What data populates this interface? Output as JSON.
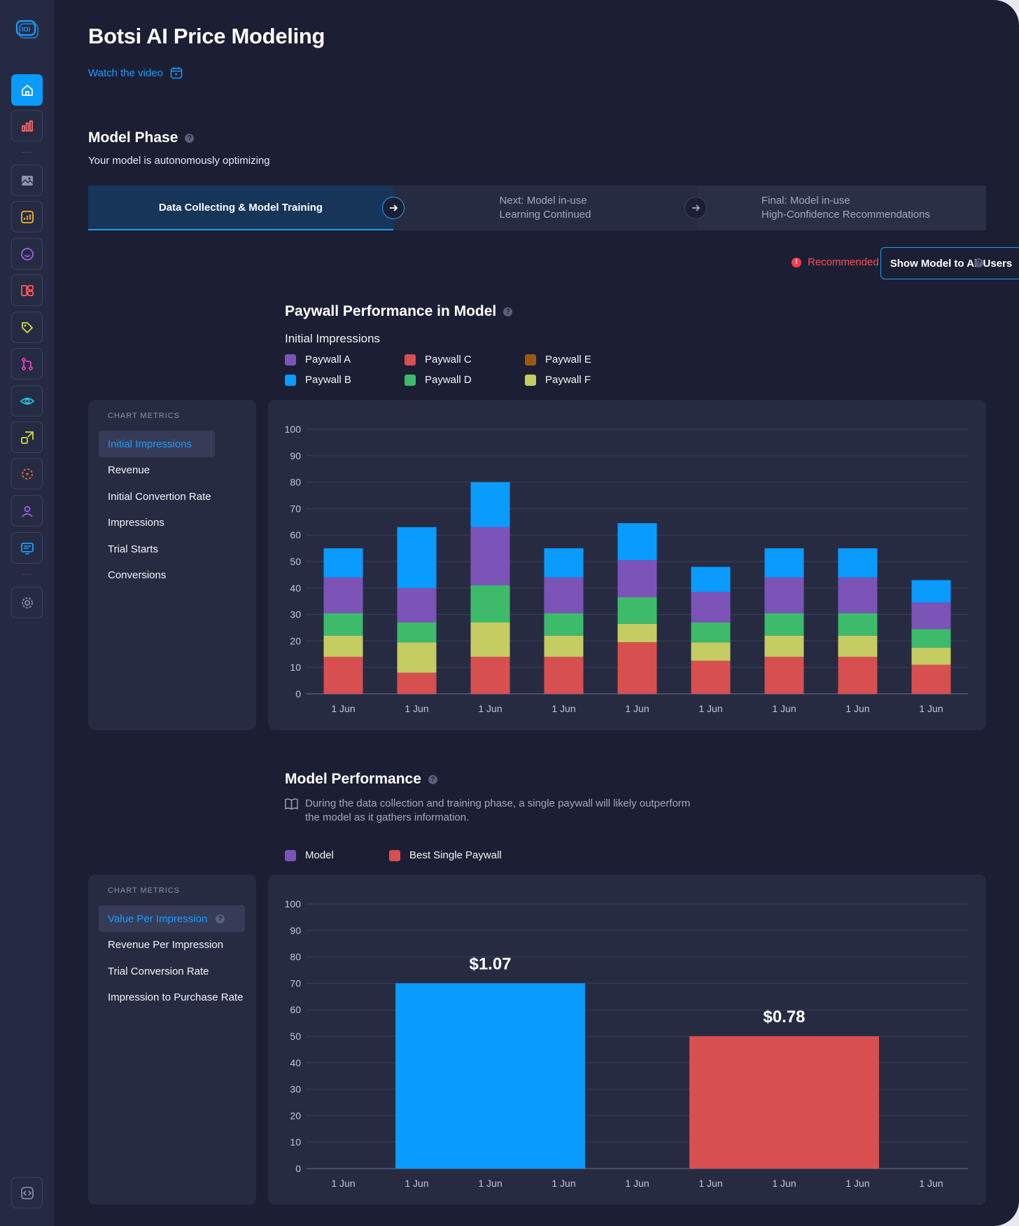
{
  "page": {
    "title": "Botsi AI Price Modeling",
    "watch_link": "Watch the video"
  },
  "model_phase": {
    "title": "Model Phase",
    "subtitle": "Your model is autonomously optimizing",
    "steps": [
      {
        "label": "Data Collecting & Model Training"
      },
      {
        "line1": "Next: Model in-use",
        "line2": "Learning Continued"
      },
      {
        "line1": "Final: Model in-use",
        "line2": "High-Confidence Recommendations"
      }
    ]
  },
  "actions": {
    "recommended_label": "Recommended",
    "show_button": "Show Model to All Users"
  },
  "paywall_performance": {
    "title": "Paywall Performance in Model",
    "metric_heading": "Initial Impressions",
    "metrics_label": "CHART METRICS",
    "metrics": [
      "Initial Impressions",
      "Revenue",
      "Initial Convertion Rate",
      "Impressions",
      "Trial Starts",
      "Conversions"
    ]
  },
  "model_performance": {
    "title": "Model Performance",
    "note": "During the data collection and training phase, a single paywall will likely outperform the model as it gathers information.",
    "metrics_label": "CHART METRICS",
    "metrics": [
      "Value Per Impression",
      "Revenue Per Impression",
      "Trial Conversion Rate",
      "Impression to Purchase Rate"
    ]
  },
  "colors": {
    "Paywall A": "#7c54b8",
    "Paywall B": "#0a9bff",
    "Paywall C": "#d84f50",
    "Paywall D": "#3dbb6b",
    "Paywall E": "#9a5a12",
    "Paywall F": "#c5cc62"
  },
  "chart_data": [
    {
      "type": "bar",
      "stacked": true,
      "title": "Initial Impressions",
      "categories": [
        "1 Jun",
        "1 Jun",
        "1 Jun",
        "1 Jun",
        "1 Jun",
        "1 Jun",
        "1 Jun",
        "1 Jun",
        "1 Jun"
      ],
      "ylim": [
        0,
        100
      ],
      "yticks": [
        0,
        10,
        20,
        30,
        40,
        50,
        60,
        70,
        80,
        90,
        100
      ],
      "series": [
        {
          "name": "Paywall C",
          "values": [
            14,
            8,
            14,
            14,
            19.5,
            12.5,
            14,
            14,
            11
          ]
        },
        {
          "name": "Paywall F",
          "values": [
            8,
            11.5,
            13,
            8,
            7,
            7,
            8,
            8,
            6.5
          ]
        },
        {
          "name": "Paywall D",
          "values": [
            8.5,
            7.5,
            14,
            8.5,
            10,
            7.5,
            8.5,
            8.5,
            7
          ]
        },
        {
          "name": "Paywall A",
          "values": [
            13.5,
            13,
            22,
            13.5,
            14,
            11.5,
            13.5,
            13.5,
            10
          ]
        },
        {
          "name": "Paywall B",
          "values": [
            11,
            23,
            17,
            11,
            14,
            9.5,
            11,
            11,
            8.5
          ]
        },
        {
          "name": "Paywall E",
          "values": [
            0,
            0,
            0,
            0,
            0,
            0,
            0,
            0,
            0
          ]
        }
      ]
    },
    {
      "type": "bar",
      "title": "Value Per Impression",
      "categories": [
        "1 Jun",
        "1 Jun",
        "1 Jun",
        "1 Jun",
        "1 Jun",
        "1 Jun",
        "1 Jun",
        "1 Jun",
        "1 Jun"
      ],
      "ylim": [
        0,
        100
      ],
      "yticks": [
        0,
        10,
        20,
        30,
        40,
        50,
        60,
        70,
        80,
        90,
        100
      ],
      "series": [
        {
          "name": "Model",
          "value": 70,
          "label": "$1.07",
          "color": "#0a9bff"
        },
        {
          "name": "Best Single Paywall",
          "value": 50,
          "label": "$0.78",
          "color": "#d84f50"
        }
      ]
    }
  ]
}
